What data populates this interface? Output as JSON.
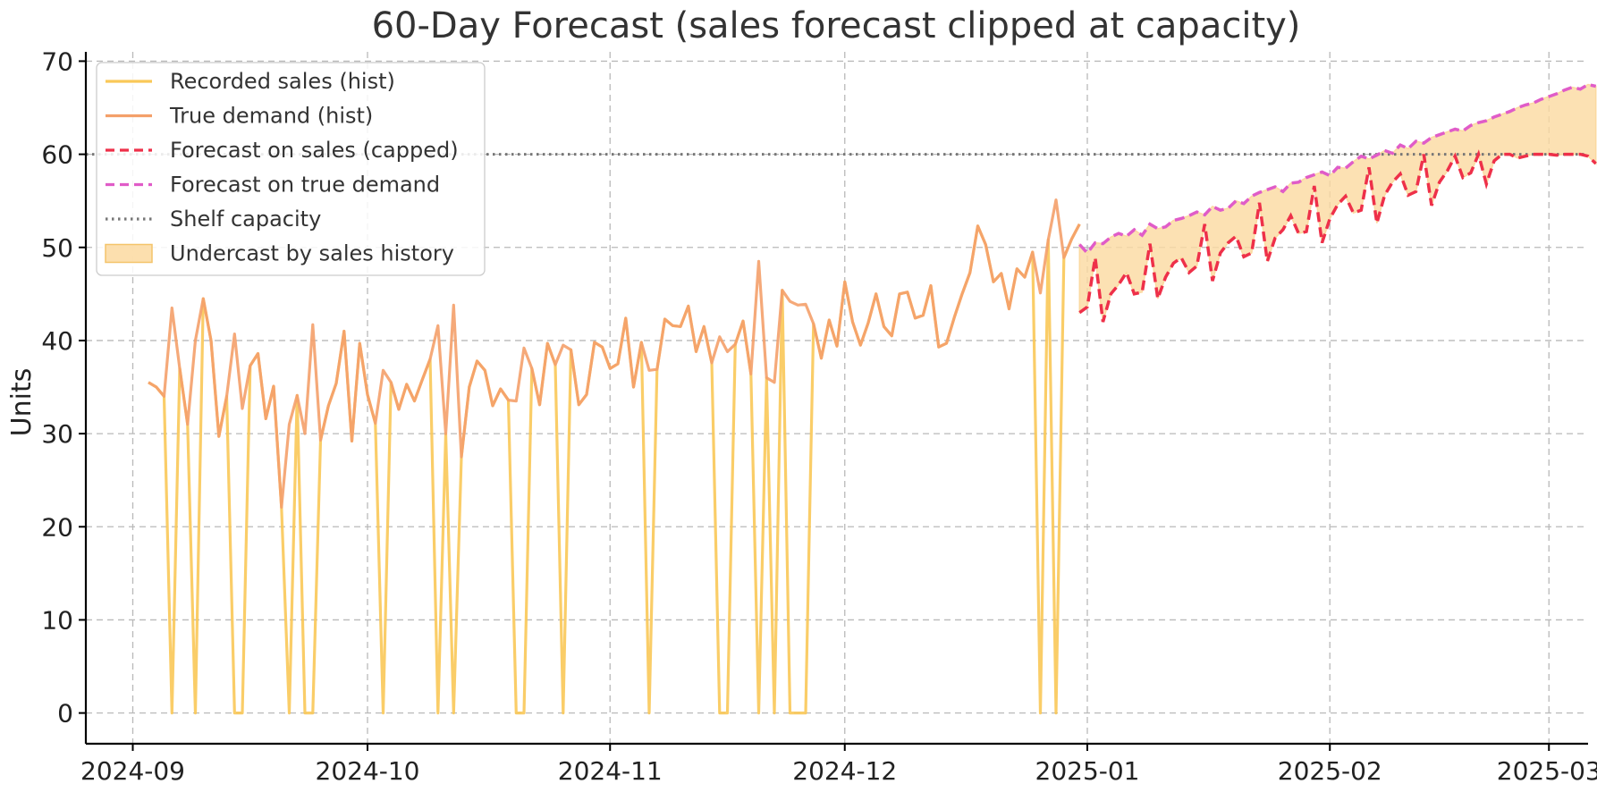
{
  "chart_data": {
    "type": "line",
    "title": "60-Day Forecast (sales forecast clipped at capacity)",
    "ylabel": "Units",
    "xlabel": "",
    "ylim": [
      -3.3,
      71
    ],
    "xlim": [
      "2024-08-26",
      "2025-03-06"
    ],
    "yticks": [
      0,
      10,
      20,
      30,
      40,
      50,
      60,
      70
    ],
    "xticks": [
      "2024-09",
      "2024-10",
      "2024-11",
      "2024-12",
      "2025-01",
      "2025-02",
      "2025-03"
    ],
    "grid": true,
    "legend_position": "top-left",
    "capacity": 60,
    "colors": {
      "recorded": "#f9c858",
      "true_demand": "#f4a06a",
      "forecast_sales": "#ee3049",
      "forecast_true": "#e05cc8",
      "capacity": "#777777",
      "undercast": "#fbd9a0"
    },
    "legend": [
      {
        "key": "recorded",
        "label": "Recorded sales (hist)"
      },
      {
        "key": "true_demand",
        "label": "True demand (hist)"
      },
      {
        "key": "forecast_sales",
        "label": "Forecast on sales (capped)"
      },
      {
        "key": "forecast_true",
        "label": "Forecast on true demand"
      },
      {
        "key": "capacity",
        "label": "Shelf capacity"
      },
      {
        "key": "undercast",
        "label": "Undercast by sales history"
      }
    ],
    "history": {
      "start": "2024-09-03",
      "true_demand": [
        35.5,
        35,
        34,
        43.5,
        37,
        31,
        40,
        44.5,
        40,
        29.7,
        34,
        40.7,
        32.7,
        37.3,
        38.6,
        31.6,
        35.1,
        22.1,
        31,
        34.1,
        30,
        41.7,
        29.3,
        33,
        35.4,
        41,
        29.2,
        39.7,
        34.2,
        31.1,
        36.8,
        35.5,
        32.6,
        35.3,
        33.5,
        35.8,
        38,
        41.6,
        30,
        43.8,
        27.5,
        35,
        37.8,
        36.8,
        33,
        34.8,
        33.6,
        33.5,
        39.2,
        37,
        33.1,
        39.7,
        37.4,
        39.5,
        39,
        33.1,
        34.2,
        39.8,
        39.3,
        37,
        37.5,
        42.4,
        35,
        39.8,
        36.8,
        36.9,
        42.3,
        41.6,
        41.5,
        43.7,
        38.8,
        41.5,
        37.6,
        40.4,
        38.8,
        39.6,
        42.1,
        36.4,
        48.5,
        36,
        35.5,
        45.4,
        44.2,
        43.8,
        43.9,
        41.8,
        38.1,
        42.2,
        39.4,
        46.3,
        42,
        39.5,
        41.9,
        45,
        41.5,
        40.5,
        45,
        45.2,
        42.4,
        42.7,
        45.9,
        39.3,
        39.7,
        42.5,
        45,
        47.3,
        52.3,
        50.3,
        46.3,
        47.2,
        43.4,
        47.7,
        46.8,
        49.5,
        45.1,
        50.8,
        55.1,
        48.9,
        50.9,
        52.5
      ],
      "recorded": [
        35.5,
        35,
        34,
        0,
        37,
        31,
        0,
        44.5,
        40,
        29.7,
        34,
        0,
        0,
        37.3,
        38.6,
        31.6,
        35.1,
        22.1,
        0,
        34.1,
        0,
        0,
        29.3,
        33,
        35.4,
        41,
        29.2,
        39.7,
        34.2,
        31.1,
        0,
        35.5,
        32.6,
        35.3,
        33.5,
        35.8,
        38,
        0,
        30,
        0,
        27.5,
        35,
        37.8,
        36.8,
        33,
        34.8,
        33.6,
        0,
        0,
        37,
        33.1,
        39.7,
        37.4,
        0,
        39,
        33.1,
        34.2,
        39.8,
        39.3,
        37,
        37.5,
        42.4,
        35,
        39.8,
        0,
        36.9,
        42.3,
        41.6,
        41.5,
        43.7,
        38.8,
        41.5,
        37.6,
        0,
        0,
        39.6,
        42.1,
        36.4,
        0,
        36,
        0,
        45.4,
        0,
        0,
        0,
        41.8,
        38.1,
        42.2,
        39.4,
        46.3,
        42,
        39.5,
        41.9,
        45,
        41.5,
        40.5,
        45,
        45.2,
        42.4,
        42.7,
        45.9,
        39.3,
        39.7,
        42.5,
        45,
        47.3,
        52.3,
        50.3,
        46.3,
        47.2,
        43.4,
        47.7,
        46.8,
        49.5,
        0,
        50.8,
        0,
        48.9,
        50.9,
        52.5
      ]
    },
    "forecast": {
      "start": "2024-12-31",
      "true_demand": [
        50.3,
        49.4,
        50.5,
        50.4,
        51.1,
        51.5,
        51.2,
        51.9,
        51.3,
        52.5,
        52,
        52.2,
        52.9,
        53.1,
        53.4,
        53.8,
        53.5,
        54.4,
        54,
        54.2,
        55,
        54.7,
        55.5,
        55.9,
        56.2,
        56.5,
        56,
        56.9,
        57,
        57.5,
        57.8,
        58.1,
        57.7,
        58.6,
        58.5,
        59.2,
        59.8,
        59.5,
        59.9,
        60.4,
        60.1,
        61,
        60.6,
        61.4,
        61.2,
        61.8,
        62.1,
        62.4,
        62.7,
        62.5,
        63.1,
        63.4,
        63.6,
        64,
        64.3,
        64.6,
        65,
        65.3,
        65.5,
        65.9,
        66.2,
        66.5,
        66.9,
        67.2,
        67,
        67.5,
        67.3
      ],
      "sales_capped": [
        43,
        43.6,
        48.9,
        42,
        45,
        46,
        47.3,
        45,
        45.2,
        50.4,
        44.5,
        46.8,
        48.3,
        48.9,
        47.3,
        48,
        52.5,
        46.4,
        49.4,
        50.5,
        51.2,
        49,
        49.4,
        54.8,
        48.5,
        51,
        51.9,
        53.4,
        51.5,
        51.7,
        56.6,
        50.5,
        53.1,
        54.6,
        55.5,
        53.7,
        54,
        58.6,
        52.6,
        55.6,
        57,
        57.9,
        55.6,
        56,
        60,
        54.5,
        57,
        58.2,
        59.8,
        57.5,
        58,
        60,
        56.8,
        59.3,
        60,
        60,
        59.6,
        59.8,
        60,
        60,
        60,
        59.9,
        60,
        60,
        60,
        59.8,
        59
      ]
    }
  }
}
